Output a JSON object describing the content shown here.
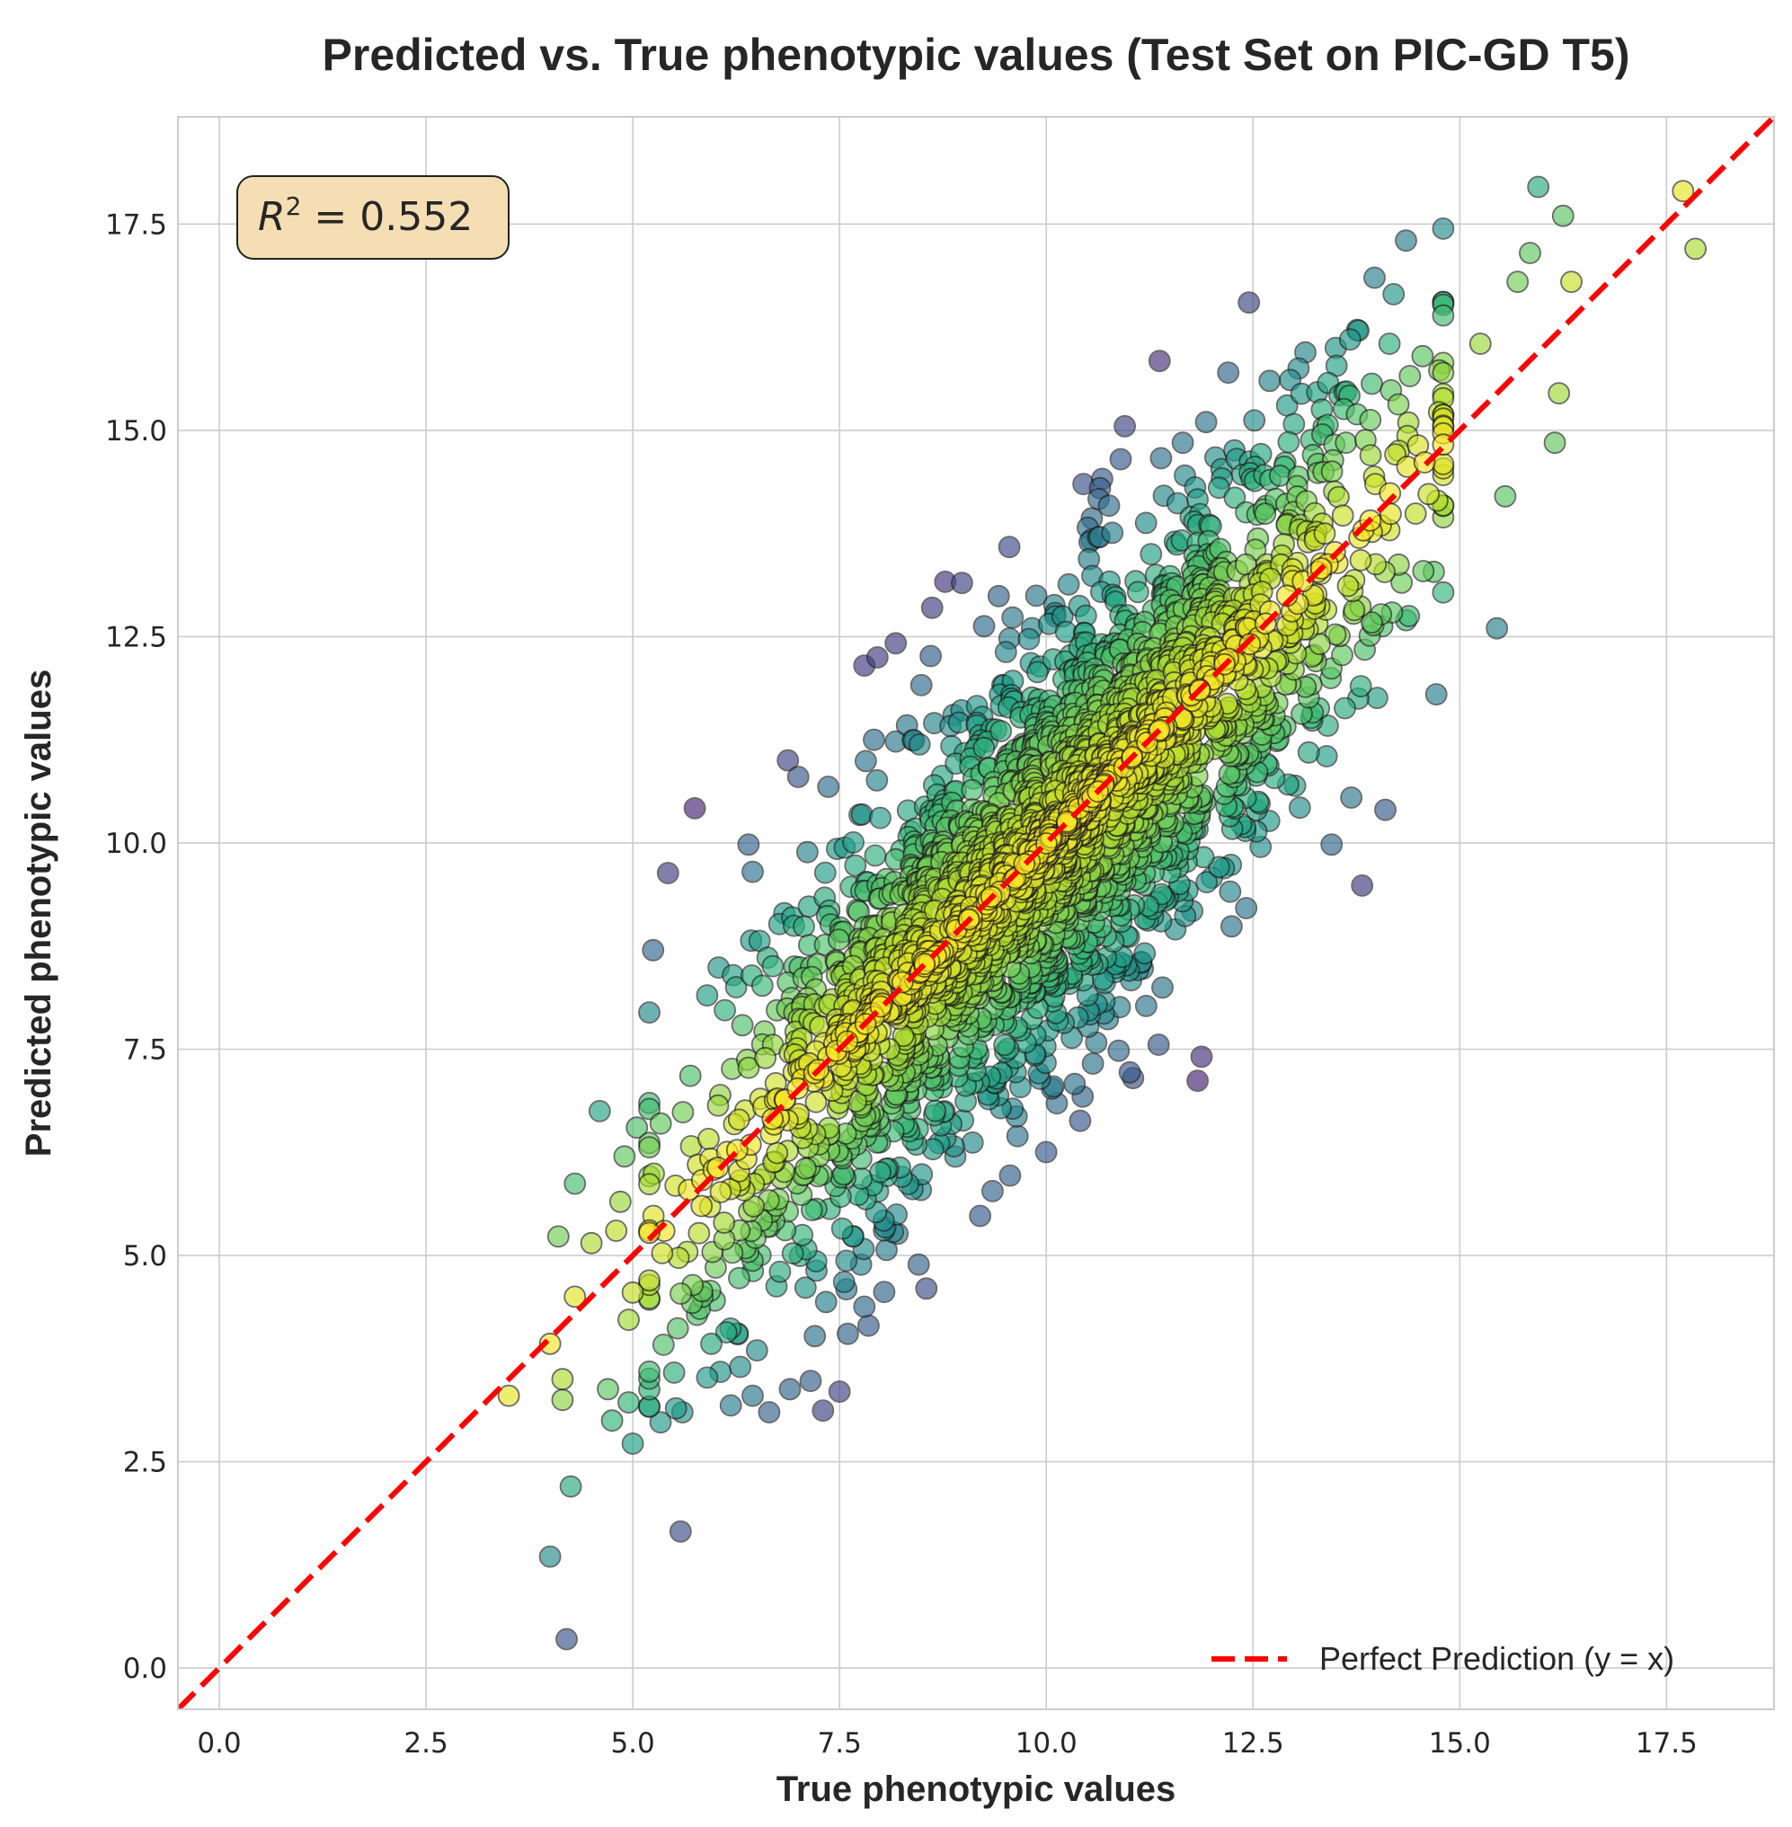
{
  "chart_data": {
    "type": "scatter",
    "title": "Predicted vs. True phenotypic values (Test Set on PIC-GD T5)",
    "xlabel": "True phenotypic values",
    "ylabel": "Predicted phenotypic values",
    "xlim": [
      -0.5,
      18.8
    ],
    "ylim": [
      -0.5,
      18.8
    ],
    "xticks": [
      0.0,
      2.5,
      5.0,
      7.5,
      10.0,
      12.5,
      15.0,
      17.5
    ],
    "yticks": [
      0.0,
      2.5,
      5.0,
      7.5,
      10.0,
      12.5,
      15.0,
      17.5
    ],
    "xtick_labels": [
      "0.0",
      "2.5",
      "5.0",
      "7.5",
      "10.0",
      "12.5",
      "15.0",
      "17.5"
    ],
    "ytick_labels": [
      "0.0",
      "2.5",
      "5.0",
      "7.5",
      "10.0",
      "12.5",
      "15.0",
      "17.5"
    ],
    "grid": true,
    "colormap": "viridis (color = closeness to y = x)",
    "r2_annotation": {
      "symbol": "R",
      "exponent": "2",
      "equals": " = ",
      "value": "0.552"
    },
    "reference_line": {
      "label": "Perfect Prediction (y = x)",
      "slope": 1,
      "intercept": 0,
      "color": "#ff0000",
      "style": "dashed"
    },
    "legend_position": "lower-right",
    "dense_cloud": {
      "n_points": 2600,
      "x_mean": 10.0,
      "x_sd": 1.95,
      "residual_sd": 1.3,
      "x_range": [
        5.2,
        14.8
      ]
    },
    "points": [
      {
        "x": 5.75,
        "y": 10.42
      },
      {
        "x": 8.98,
        "y": 13.15
      },
      {
        "x": 12.45,
        "y": 16.55
      },
      {
        "x": 14.35,
        "y": 17.3
      },
      {
        "x": 15.95,
        "y": 17.95
      },
      {
        "x": 16.25,
        "y": 17.6
      },
      {
        "x": 17.7,
        "y": 17.9
      },
      {
        "x": 17.85,
        "y": 17.2
      },
      {
        "x": 15.85,
        "y": 17.15
      },
      {
        "x": 16.35,
        "y": 16.8
      },
      {
        "x": 15.7,
        "y": 16.8
      },
      {
        "x": 13.97,
        "y": 16.85
      },
      {
        "x": 14.2,
        "y": 16.65
      },
      {
        "x": 15.25,
        "y": 16.05
      },
      {
        "x": 16.2,
        "y": 15.45
      },
      {
        "x": 16.15,
        "y": 14.85
      },
      {
        "x": 15.55,
        "y": 14.2
      },
      {
        "x": 15.45,
        "y": 12.6
      },
      {
        "x": 14.1,
        "y": 10.4
      },
      {
        "x": 13.45,
        "y": 9.98
      },
      {
        "x": 11.05,
        "y": 7.15
      },
      {
        "x": 10.95,
        "y": 15.05
      },
      {
        "x": 10.9,
        "y": 14.65
      },
      {
        "x": 10.45,
        "y": 14.35
      },
      {
        "x": 10.65,
        "y": 14.3
      },
      {
        "x": 12.2,
        "y": 15.7
      },
      {
        "x": 8.18,
        "y": 12.42
      },
      {
        "x": 7.8,
        "y": 12.15
      },
      {
        "x": 8.62,
        "y": 12.85
      },
      {
        "x": 7.0,
        "y": 10.8
      },
      {
        "x": 6.4,
        "y": 9.98
      },
      {
        "x": 6.45,
        "y": 9.65
      },
      {
        "x": 4.6,
        "y": 6.75
      },
      {
        "x": 4.3,
        "y": 5.87
      },
      {
        "x": 4.1,
        "y": 5.23
      },
      {
        "x": 3.5,
        "y": 3.3
      },
      {
        "x": 4.0,
        "y": 3.93
      },
      {
        "x": 4.3,
        "y": 4.5
      },
      {
        "x": 4.15,
        "y": 3.5
      },
      {
        "x": 4.15,
        "y": 3.25
      },
      {
        "x": 4.25,
        "y": 2.2
      },
      {
        "x": 4.0,
        "y": 1.35
      },
      {
        "x": 4.2,
        "y": 0.35
      },
      {
        "x": 4.75,
        "y": 3.0
      },
      {
        "x": 5.0,
        "y": 2.72
      },
      {
        "x": 4.7,
        "y": 3.38
      },
      {
        "x": 4.95,
        "y": 3.22
      },
      {
        "x": 5.6,
        "y": 3.1
      },
      {
        "x": 5.5,
        "y": 3.58
      },
      {
        "x": 5.9,
        "y": 3.52
      },
      {
        "x": 5.95,
        "y": 3.93
      },
      {
        "x": 6.3,
        "y": 3.65
      },
      {
        "x": 6.45,
        "y": 3.3
      },
      {
        "x": 6.65,
        "y": 3.1
      },
      {
        "x": 6.9,
        "y": 3.38
      },
      {
        "x": 7.15,
        "y": 3.48
      },
      {
        "x": 7.3,
        "y": 3.12
      },
      {
        "x": 7.5,
        "y": 3.35
      },
      {
        "x": 7.6,
        "y": 4.05
      },
      {
        "x": 7.8,
        "y": 4.38
      },
      {
        "x": 7.85,
        "y": 4.15
      },
      {
        "x": 8.55,
        "y": 4.6
      },
      {
        "x": 9.2,
        "y": 5.48
      },
      {
        "x": 9.35,
        "y": 5.78
      },
      {
        "x": 4.95,
        "y": 4.22
      },
      {
        "x": 5.0,
        "y": 4.55
      },
      {
        "x": 5.25,
        "y": 5.48
      },
      {
        "x": 5.05,
        "y": 6.55
      },
      {
        "x": 4.9,
        "y": 6.2
      },
      {
        "x": 4.85,
        "y": 5.65
      },
      {
        "x": 4.5,
        "y": 5.15
      },
      {
        "x": 4.8,
        "y": 5.3
      },
      {
        "x": 13.5,
        "y": 16.0
      },
      {
        "x": 14.15,
        "y": 16.05
      },
      {
        "x": 14.55,
        "y": 15.9
      },
      {
        "x": 13.05,
        "y": 15.75
      },
      {
        "x": 12.7,
        "y": 15.6
      },
      {
        "x": 11.65,
        "y": 14.85
      }
    ]
  }
}
